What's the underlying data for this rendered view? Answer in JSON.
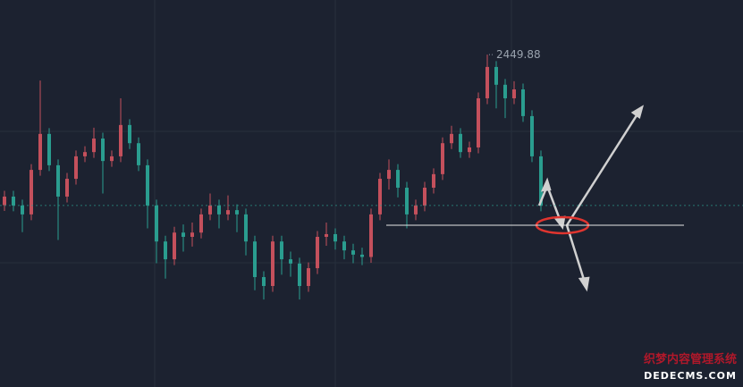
{
  "chart_data": {
    "type": "candlestick",
    "up_color": "#c4505c",
    "down_color": "#2a9d8f",
    "ylim": [
      2364,
      2464
    ],
    "open": [
      2411.0,
      2413.2,
      2410.9,
      2408.6,
      2420.1,
      2429.4,
      2421.3,
      2413.2,
      2417.8,
      2423.6,
      2424.7,
      2428.2,
      2422.4,
      2423.6,
      2431.7,
      2427.0,
      2421.3,
      2410.9,
      2401.6,
      2397.0,
      2403.9,
      2402.8,
      2403.9,
      2408.6,
      2410.9,
      2408.6,
      2409.7,
      2408.6,
      2401.6,
      2392.4,
      2390.1,
      2401.6,
      2397.0,
      2395.9,
      2390.1,
      2394.7,
      2402.8,
      2403.5,
      2401.6,
      2399.3,
      2398.2,
      2397.6,
      2408.6,
      2417.8,
      2420.1,
      2415.5,
      2408.6,
      2410.9,
      2415.5,
      2419.0,
      2427.0,
      2429.4,
      2424.7,
      2425.9,
      2438.6,
      2446.7,
      2442.1,
      2438.6,
      2440.9,
      2434.0,
      2423.6
    ],
    "high": [
      2414.7,
      2414.7,
      2412.4,
      2421.6,
      2443.2,
      2430.9,
      2422.8,
      2419.3,
      2425.1,
      2426.2,
      2431.0,
      2429.7,
      2425.1,
      2438.6,
      2433.2,
      2428.5,
      2422.8,
      2412.4,
      2403.1,
      2405.4,
      2406.0,
      2406.5,
      2410.1,
      2414.0,
      2412.4,
      2413.5,
      2411.2,
      2410.1,
      2403.1,
      2393.9,
      2403.1,
      2403.1,
      2399.0,
      2397.4,
      2396.2,
      2404.3,
      2406.5,
      2405.0,
      2403.1,
      2401.0,
      2400.0,
      2410.1,
      2419.3,
      2422.8,
      2421.6,
      2417.0,
      2412.4,
      2417.0,
      2420.5,
      2428.5,
      2431.5,
      2430.9,
      2427.4,
      2440.1,
      2449.88,
      2448.2,
      2443.6,
      2443.0,
      2442.4,
      2435.5,
      2425.1
    ],
    "low": [
      2409.5,
      2409.4,
      2404.0,
      2407.1,
      2418.6,
      2419.8,
      2402.0,
      2411.7,
      2416.3,
      2422.1,
      2423.2,
      2414.0,
      2420.9,
      2422.1,
      2425.5,
      2419.8,
      2405.0,
      2396.0,
      2392.0,
      2395.5,
      2399.0,
      2400.3,
      2402.4,
      2407.1,
      2405.0,
      2407.1,
      2404.0,
      2398.0,
      2389.0,
      2386.6,
      2388.6,
      2393.0,
      2392.5,
      2386.6,
      2388.6,
      2393.2,
      2400.5,
      2399.5,
      2397.0,
      2396.0,
      2395.5,
      2396.1,
      2407.1,
      2415.0,
      2413.0,
      2405.0,
      2407.1,
      2409.4,
      2414.0,
      2417.5,
      2425.5,
      2423.2,
      2423.2,
      2424.4,
      2437.1,
      2436.0,
      2433.5,
      2437.1,
      2432.5,
      2422.1,
      2409.4
    ],
    "close": [
      2413.2,
      2410.9,
      2408.6,
      2420.1,
      2429.4,
      2421.3,
      2413.2,
      2417.8,
      2423.6,
      2424.7,
      2428.2,
      2422.4,
      2423.6,
      2431.7,
      2427.0,
      2421.3,
      2410.9,
      2401.6,
      2397.0,
      2403.9,
      2402.8,
      2403.9,
      2408.6,
      2410.9,
      2408.6,
      2409.7,
      2408.6,
      2401.6,
      2392.4,
      2390.1,
      2401.6,
      2397.0,
      2395.9,
      2390.1,
      2394.7,
      2402.8,
      2403.5,
      2401.6,
      2399.3,
      2398.2,
      2397.6,
      2408.6,
      2417.8,
      2420.1,
      2415.5,
      2408.6,
      2410.9,
      2415.5,
      2419.0,
      2427.0,
      2429.4,
      2424.7,
      2425.9,
      2438.6,
      2446.7,
      2442.1,
      2438.6,
      2440.9,
      2434.0,
      2423.6,
      2410.9
    ],
    "support_level": 2405.8
  },
  "watermark": {
    "line1": "织梦内容管理系统",
    "line2": "DEDECMS.COM"
  }
}
